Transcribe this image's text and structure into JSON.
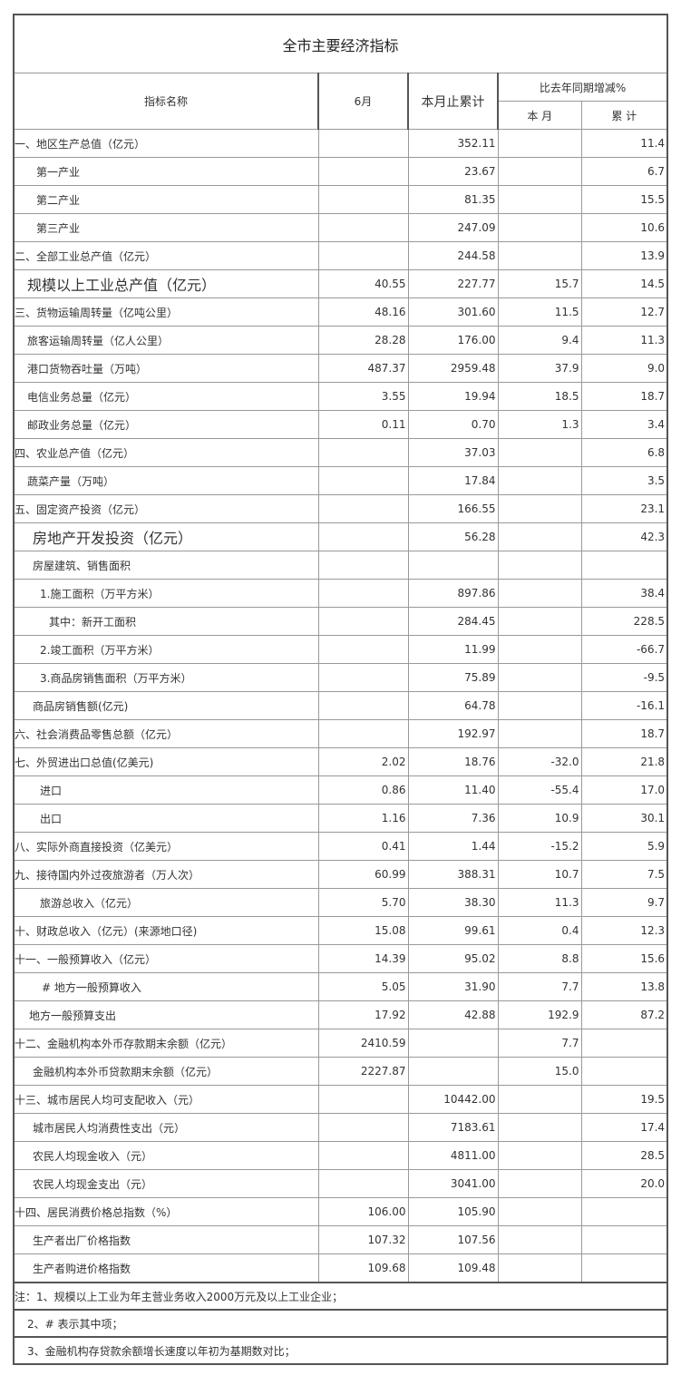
{
  "title": "全市主要经济指标",
  "headers": {
    "name": "指标名称",
    "month": "6月",
    "cumulative": "本月止累计",
    "yoy": "比去年同期增减%",
    "yoy_month": "本 月",
    "yoy_cum": "累 计"
  },
  "rows": [
    [
      "一、地区生产总值（亿元）",
      "",
      "352.11",
      "",
      "11.4"
    ],
    [
      "第一产业",
      "",
      "23.67",
      "",
      "6.7"
    ],
    [
      "第二产业",
      "",
      "81.35",
      "",
      "15.5"
    ],
    [
      "第三产业",
      "",
      "247.09",
      "",
      "10.6"
    ],
    [
      "二、全部工业总产值（亿元）",
      "",
      "244.58",
      "",
      "13.9"
    ],
    [
      "规模以上工业总产值（亿元）",
      "40.55",
      "227.77",
      "15.7",
      "14.5"
    ],
    [
      "三、货物运输周转量（亿吨公里）",
      "48.16",
      "301.60",
      "11.5",
      "12.7"
    ],
    [
      "旅客运输周转量（亿人公里）",
      "28.28",
      "176.00",
      "9.4",
      "11.3"
    ],
    [
      "港口货物吞吐量（万吨）",
      "487.37",
      "2959.48",
      "37.9",
      "9.0"
    ],
    [
      "电信业务总量（亿元）",
      "3.55",
      "19.94",
      "18.5",
      "18.7"
    ],
    [
      "邮政业务总量（亿元）",
      "0.11",
      "0.70",
      "1.3",
      "3.4"
    ],
    [
      "四、农业总产值（亿元）",
      "",
      "37.03",
      "",
      "6.8"
    ],
    [
      "蔬菜产量（万吨）",
      "",
      "17.84",
      "",
      "3.5"
    ],
    [
      "五、固定资产投资（亿元）",
      "",
      "166.55",
      "",
      "23.1"
    ],
    [
      "房地产开发投资（亿元）",
      "",
      "56.28",
      "",
      "42.3"
    ],
    [
      "房屋建筑、销售面积",
      "",
      "",
      "",
      ""
    ],
    [
      "1.施工面积（万平方米）",
      "",
      "897.86",
      "",
      "38.4"
    ],
    [
      "其中：新开工面积",
      "",
      "284.45",
      "",
      "228.5"
    ],
    [
      "2.竣工面积（万平方米）",
      "",
      "11.99",
      "",
      "-66.7"
    ],
    [
      "3.商品房销售面积（万平方米）",
      "",
      "75.89",
      "",
      "-9.5"
    ],
    [
      "商品房销售额(亿元)",
      "",
      "64.78",
      "",
      "-16.1"
    ],
    [
      "六、社会消费品零售总额（亿元）",
      "",
      "192.97",
      "",
      "18.7"
    ],
    [
      "七、外贸进出口总值(亿美元)",
      "2.02",
      "18.76",
      "-32.0",
      "21.8"
    ],
    [
      "进口",
      "0.86",
      "11.40",
      "-55.4",
      "17.0"
    ],
    [
      "出口",
      "1.16",
      "7.36",
      "10.9",
      "30.1"
    ],
    [
      "八、实际外商直接投资（亿美元）",
      "0.41",
      "1.44",
      "-15.2",
      "5.9"
    ],
    [
      "九、接待国内外过夜旅游者（万人次）",
      "60.99",
      "388.31",
      "10.7",
      "7.5"
    ],
    [
      "旅游总收入（亿元）",
      "5.70",
      "38.30",
      "11.3",
      "9.7"
    ],
    [
      "十、财政总收入（亿元）(来源地口径)",
      "15.08",
      "99.61",
      "0.4",
      "12.3"
    ],
    [
      "十一、一般预算收入（亿元）",
      "14.39",
      "95.02",
      "8.8",
      "15.6"
    ],
    [
      "# 地方一般预算收入",
      "5.05",
      "31.90",
      "7.7",
      "13.8"
    ],
    [
      "地方一般预算支出",
      "17.92",
      "42.88",
      "192.9",
      "87.2"
    ],
    [
      "十二、金融机构本外币存款期末余额（亿元）",
      "2410.59",
      "",
      "7.7",
      ""
    ],
    [
      "金融机构本外币贷款期末余额（亿元）",
      "2227.87",
      "",
      "15.0",
      ""
    ],
    [
      "十三、城市居民人均可支配收入（元）",
      "",
      "10442.00",
      "",
      "19.5"
    ],
    [
      "城市居民人均消费性支出（元）",
      "",
      "7183.61",
      "",
      "17.4"
    ],
    [
      "农民人均现金收入（元）",
      "",
      "4811.00",
      "",
      "28.5"
    ],
    [
      "农民人均现金支出（元）",
      "",
      "3041.00",
      "",
      "20.0"
    ],
    [
      "十四、居民消费价格总指数（%）",
      "106.00",
      "105.90",
      "",
      ""
    ],
    [
      "生产者出厂价格指数",
      "107.32",
      "107.56",
      "",
      ""
    ],
    [
      "生产者购进价格指数",
      "109.68",
      "109.48",
      "",
      ""
    ]
  ],
  "notes": [
    "注：1、规模以上工业为年主营业务收入2000万元及以上工业企业；",
    "2、# 表示其中项；",
    "3、金融机构存贷款余额增长速度以年初为基期数对比；"
  ]
}
